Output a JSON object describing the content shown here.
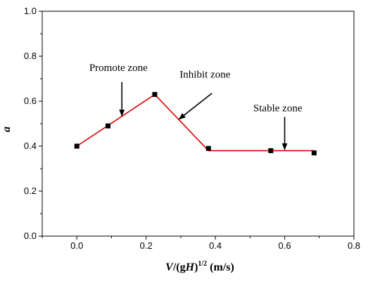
{
  "chart_data": {
    "type": "line",
    "xlabel": {
      "v": "V",
      "mid": "/(g",
      "h": "H",
      "close": ")",
      "sup": "1/2",
      "unit": " (m/s)"
    },
    "ylabel": "a",
    "xlim": [
      -0.1,
      0.8
    ],
    "ylim": [
      0.0,
      1.0
    ],
    "xticks": [
      "0.0",
      "0.2",
      "0.4",
      "0.6",
      "0.8"
    ],
    "yticks": [
      "0.0",
      "0.2",
      "0.4",
      "0.6",
      "0.8",
      "1.0"
    ],
    "grid": false,
    "series": [
      {
        "points": [
          {
            "x": 0.0,
            "y": 0.4
          },
          {
            "x": 0.09,
            "y": 0.49
          },
          {
            "x": 0.225,
            "y": 0.63
          },
          {
            "x": 0.38,
            "y": 0.39
          },
          {
            "x": 0.56,
            "y": 0.38
          },
          {
            "x": 0.685,
            "y": 0.37
          }
        ],
        "line_color": "#e00000",
        "marker_color": "#000000"
      }
    ],
    "fit_segments": [
      {
        "x": [
          0.0,
          0.225
        ],
        "y": [
          0.4,
          0.63
        ]
      },
      {
        "x": [
          0.225,
          0.38
        ],
        "y": [
          0.63,
          0.38
        ]
      },
      {
        "x": [
          0.38,
          0.685
        ],
        "y": [
          0.38,
          0.38
        ]
      }
    ],
    "annotations": [
      {
        "text": "Promote zone",
        "label_x": 0.12,
        "label_y": 0.735,
        "arrow_from": [
          0.13,
          0.685
        ],
        "arrow_to": [
          0.13,
          0.535
        ]
      },
      {
        "text": "Inhibit zone",
        "label_x": 0.37,
        "label_y": 0.705,
        "arrow_from": [
          0.39,
          0.635
        ],
        "arrow_to": [
          0.295,
          0.52
        ]
      },
      {
        "text": "Stable zone",
        "label_x": 0.58,
        "label_y": 0.555,
        "arrow_from": [
          0.6,
          0.53
        ],
        "arrow_to": [
          0.6,
          0.385
        ]
      }
    ]
  }
}
